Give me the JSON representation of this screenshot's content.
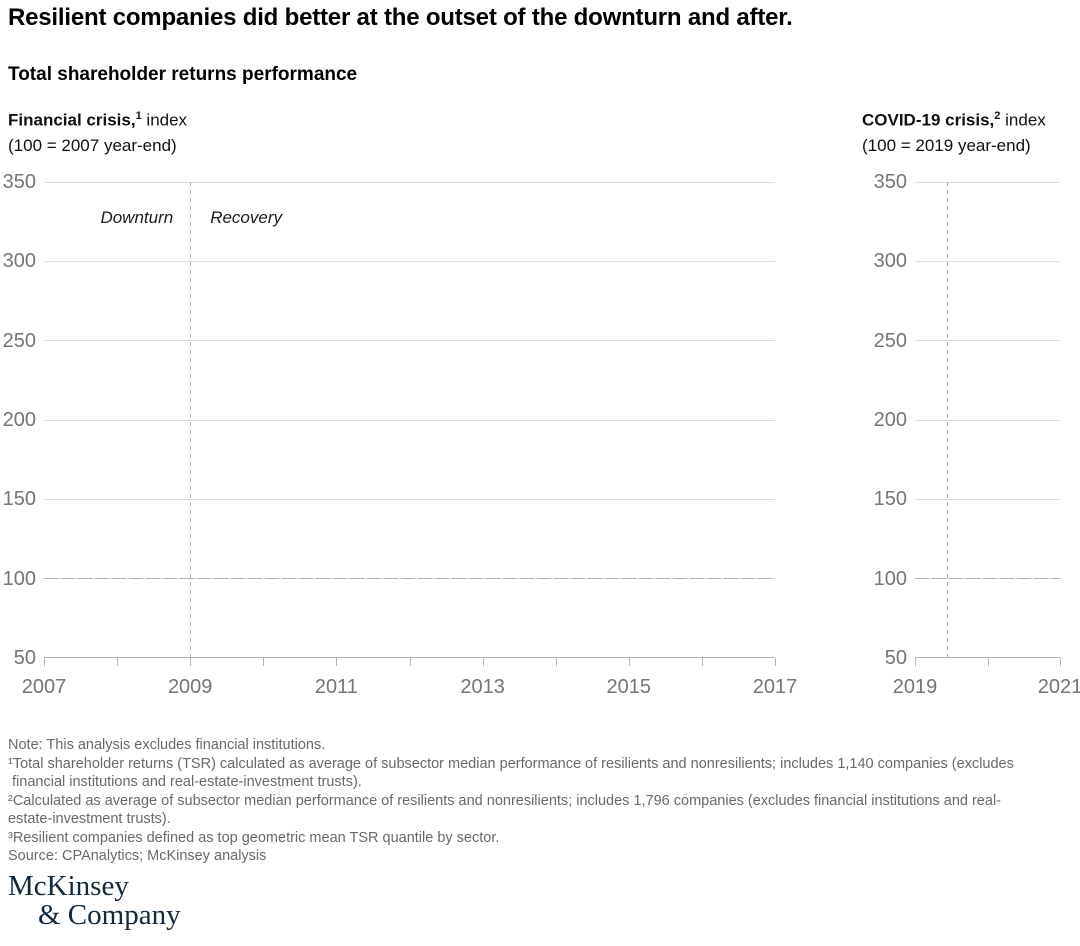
{
  "page": {
    "title": "Resilient companies did better at the outset of the downturn and after.",
    "subtitle": "Total shareholder returns performance"
  },
  "panels": {
    "left": {
      "heading_bold": "Financial crisis,",
      "heading_sup": "1",
      "heading_rest": " index",
      "heading_line2": "(100 = 2007 year-end)"
    },
    "right": {
      "heading_bold": "COVID-19 crisis,",
      "heading_sup": "2",
      "heading_rest": " index",
      "heading_line2": "(100 = 2019 year-end)"
    }
  },
  "chart_data": [
    {
      "type": "line",
      "title": "Financial crisis, index (100 = 2007 year-end)",
      "series": [],
      "y_axis": {
        "range": [
          50,
          350
        ],
        "ticks": [
          350,
          300,
          250,
          200,
          150,
          100,
          50
        ],
        "baseline": 100
      },
      "x_axis": {
        "range": [
          2007,
          2017
        ],
        "tick_interval": 1,
        "labels": [
          2007,
          2009,
          2011,
          2013,
          2015,
          2017
        ]
      },
      "divider": {
        "x": 2009,
        "label_left": "Downturn",
        "label_right": "Recovery"
      },
      "grid": true,
      "legend": "none"
    },
    {
      "type": "line",
      "title": "COVID-19 crisis, index (100 = 2019 year-end)",
      "series": [],
      "y_axis": {
        "range": [
          50,
          350
        ],
        "ticks": [
          350,
          300,
          250,
          200,
          150,
          100,
          50
        ],
        "baseline": 100
      },
      "x_axis": {
        "range": [
          2019,
          2021
        ],
        "tick_interval": 1,
        "labels": [
          2019,
          2021
        ]
      },
      "divider": {
        "x": 2019.45,
        "label_left": "",
        "label_right": ""
      },
      "grid": true,
      "legend": "none"
    }
  ],
  "notes": {
    "lines": [
      "Note: This analysis excludes financial institutions.",
      "¹Total shareholder returns (TSR) calculated as average of subsector median performance of resilients and nonresilients; includes 1,140 companies (excludes",
      " financial institutions and real-estate-investment trusts).",
      "²Calculated as average of subsector median performance of resilients and nonresilients; includes 1,796 companies (excludes financial institutions and real-",
      "estate-investment trusts).",
      "³Resilient companies defined as top geometric mean TSR quantile by sector.",
      "Source: CPAnalytics; McKinsey analysis"
    ]
  },
  "logo": {
    "line1": "McKinsey",
    "line2": "& Company"
  },
  "colors": {
    "brand_navy": "#12283f",
    "grid_gray": "#dcdcdc",
    "axis_gray": "#b3b3b3",
    "tick_label_gray": "#757575",
    "note_gray": "#696969"
  }
}
